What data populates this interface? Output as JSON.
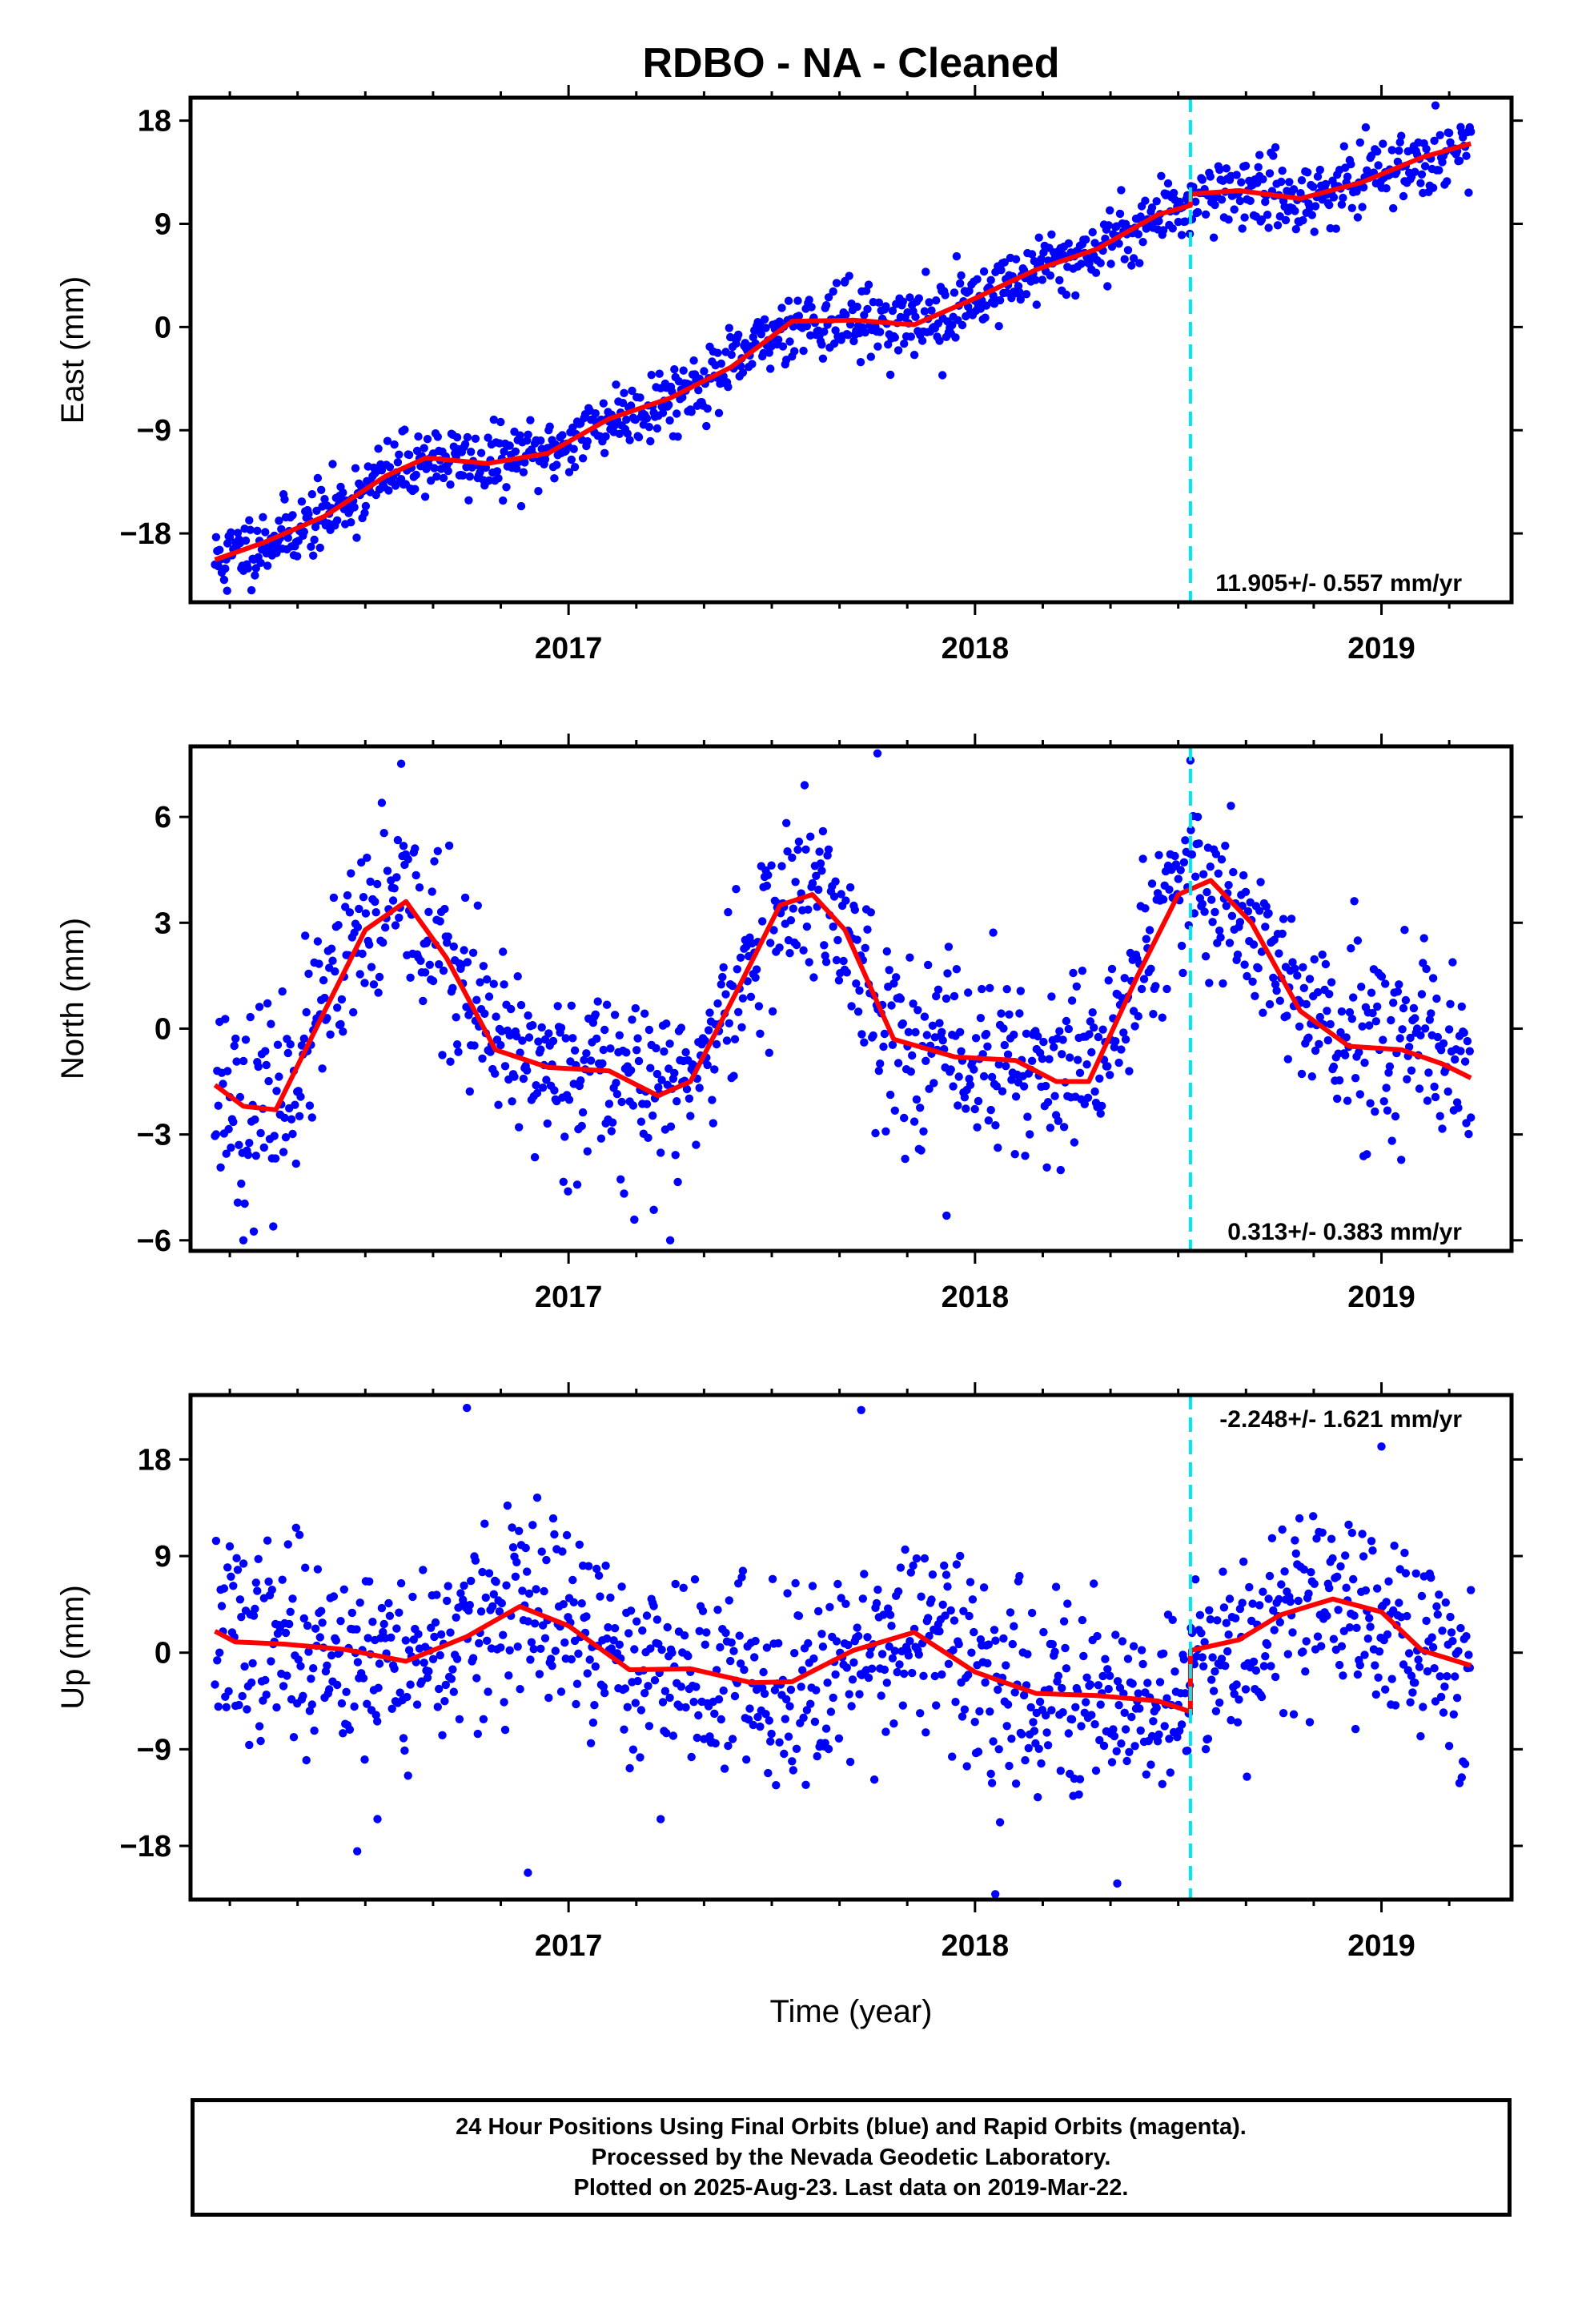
{
  "title": "RDBO  - NA - Cleaned",
  "xlabel": "Time (year)",
  "footer": {
    "line1": "24 Hour Positions Using Final Orbits (blue) and Rapid Orbits (magenta).",
    "line2": "Processed by the Nevada Geodetic Laboratory.",
    "line3": "Plotted on 2025-Aug-23. Last data on 2019-Mar-22."
  },
  "colors": {
    "points": "#0000ff",
    "model": "#ff0000",
    "event_line": "#00e5ee",
    "frame": "#000000"
  },
  "chart_data": [
    {
      "type": "scatter",
      "panel": "east",
      "ylabel": "East (mm)",
      "rate_text": "11.905+/- 0.557 mm/yr",
      "xlim": [
        2016.07,
        2019.32
      ],
      "ylim": [
        -24,
        20
      ],
      "yticks": [
        18,
        9,
        0,
        -9,
        -18
      ],
      "ytick_labels": [
        "18",
        "9",
        "0",
        "-9",
        "-18"
      ],
      "xticks": [
        2017,
        2018,
        2019
      ],
      "xtick_labels": [
        "2017",
        "2018",
        "2019"
      ],
      "event_x": 2018.53,
      "model_x": [
        2016.13,
        2016.25,
        2016.4,
        2016.55,
        2016.65,
        2016.8,
        2016.95,
        2017.1,
        2017.25,
        2017.4,
        2017.55,
        2017.7,
        2017.85,
        2018.0,
        2018.15,
        2018.3,
        2018.45,
        2018.53,
        2018.53,
        2018.65,
        2018.8,
        2018.95,
        2019.1,
        2019.22
      ],
      "model_y": [
        -20.3,
        -18.8,
        -16.5,
        -13.0,
        -11.4,
        -11.9,
        -11.0,
        -8.0,
        -6.2,
        -3.5,
        0.5,
        0.6,
        0.2,
        2.5,
        5.0,
        6.8,
        9.8,
        10.6,
        11.6,
        11.9,
        11.2,
        12.6,
        14.8,
        16.0
      ],
      "trend": [
        -19.8,
        11.905
      ],
      "seasonal": [
        1.8,
        0.0,
        0.8,
        -0.9
      ],
      "noise": 1.5,
      "n_points": 1100,
      "seed": 11,
      "outliers": [
        [
          2016.16,
          -23.0
        ],
        [
          2017.68,
          4.0
        ],
        [
          2017.92,
          -4.2
        ],
        [
          2018.7,
          15.0
        ]
      ]
    },
    {
      "type": "scatter",
      "panel": "north",
      "ylabel": "North (mm)",
      "rate_text": "0.313+/- 0.383 mm/yr",
      "xlim": [
        2016.07,
        2019.32
      ],
      "ylim": [
        -6.3,
        8
      ],
      "yticks": [
        6,
        3,
        0,
        -3,
        -6
      ],
      "ytick_labels": [
        "6",
        "3",
        "0",
        "-3",
        "-6"
      ],
      "xticks": [
        2017,
        2018,
        2019
      ],
      "xtick_labels": [
        "2017",
        "2018",
        "2019"
      ],
      "event_x": 2018.53,
      "model_x": [
        2016.13,
        2016.2,
        2016.28,
        2016.4,
        2016.5,
        2016.6,
        2016.7,
        2016.82,
        2016.95,
        2017.1,
        2017.22,
        2017.3,
        2017.42,
        2017.52,
        2017.6,
        2017.68,
        2017.8,
        2017.95,
        2018.1,
        2018.2,
        2018.28,
        2018.4,
        2018.5,
        2018.58,
        2018.68,
        2018.8,
        2018.92,
        2019.05,
        2019.15,
        2019.22
      ],
      "model_y": [
        -1.6,
        -2.2,
        -2.3,
        0.5,
        2.8,
        3.6,
        2.0,
        -0.6,
        -1.1,
        -1.2,
        -1.9,
        -1.5,
        1.2,
        3.5,
        3.8,
        2.8,
        -0.3,
        -0.8,
        -0.9,
        -1.5,
        -1.5,
        1.5,
        3.8,
        4.2,
        3.0,
        0.5,
        -0.5,
        -0.6,
        -1.0,
        -1.4
      ],
      "noise": 1.3,
      "n_points": 1100,
      "seed": 23,
      "outliers": [
        [
          2017.76,
          7.8
        ],
        [
          2018.53,
          7.6
        ],
        [
          2016.2,
          -6.0
        ],
        [
          2017.25,
          -6.0
        ],
        [
          2017.93,
          -5.3
        ]
      ]
    },
    {
      "type": "scatter",
      "panel": "up",
      "ylabel": "Up (mm)",
      "rate_text": "-2.248+/- 1.621 mm/yr",
      "xlim": [
        2016.07,
        2019.32
      ],
      "ylim": [
        -23,
        24
      ],
      "yticks": [
        18,
        9,
        0,
        -9,
        -18
      ],
      "ytick_labels": [
        "18",
        "9",
        "0",
        "-9",
        "-18"
      ],
      "xticks": [
        2017,
        2018,
        2019
      ],
      "xtick_labels": [
        "2017",
        "2018",
        "2019"
      ],
      "event_x": 2018.53,
      "model_x": [
        2016.13,
        2016.18,
        2016.3,
        2016.45,
        2016.6,
        2016.75,
        2016.88,
        2017.0,
        2017.15,
        2017.3,
        2017.45,
        2017.55,
        2017.7,
        2017.85,
        2018.0,
        2018.15,
        2018.3,
        2018.45,
        2018.53,
        2018.53,
        2018.65,
        2018.75,
        2018.88,
        2019.0,
        2019.1,
        2019.22
      ],
      "model_y": [
        2.0,
        1.0,
        0.8,
        0.3,
        -0.8,
        1.5,
        4.3,
        2.5,
        -1.6,
        -1.5,
        -2.8,
        -2.7,
        0.2,
        1.9,
        -1.8,
        -3.8,
        -4.0,
        -4.5,
        -5.5,
        0.2,
        1.2,
        3.5,
        5.0,
        3.8,
        0.2,
        -1.2
      ],
      "noise": 4.5,
      "n_points": 1100,
      "seed": 37,
      "outliers": [
        [
          2016.75,
          22.8
        ],
        [
          2017.72,
          22.6
        ],
        [
          2016.48,
          -18.5
        ],
        [
          2016.9,
          -20.5
        ],
        [
          2018.05,
          -22.5
        ],
        [
          2018.35,
          -21.5
        ],
        [
          2019.0,
          19.2
        ],
        [
          2016.53,
          -15.5
        ]
      ]
    }
  ]
}
